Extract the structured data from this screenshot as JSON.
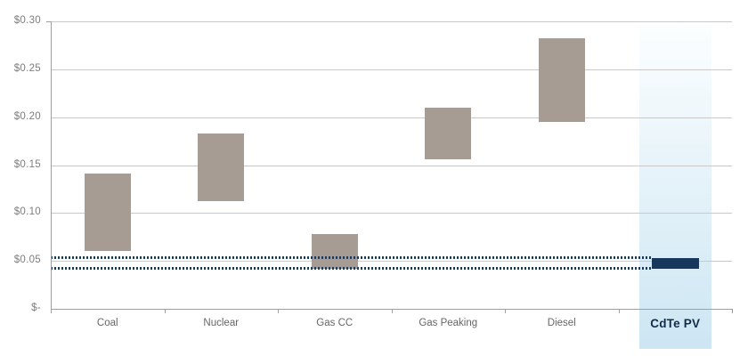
{
  "chart_data": {
    "type": "bar",
    "subtype": "floating-range-columns",
    "title": "",
    "legend": "none",
    "grid": "horizontal",
    "categories": [
      "Coal",
      "Nuclear",
      "Gas CC",
      "Gas Peaking",
      "Diesel",
      "CdTe PV"
    ],
    "bars": [
      {
        "category": "Coal",
        "low": 0.06,
        "high": 0.141
      },
      {
        "category": "Nuclear",
        "low": 0.112,
        "high": 0.183
      },
      {
        "category": "Gas CC",
        "low": 0.042,
        "high": 0.078
      },
      {
        "category": "Gas Peaking",
        "low": 0.156,
        "high": 0.21
      },
      {
        "category": "Diesel",
        "low": 0.195,
        "high": 0.282
      },
      {
        "category": "CdTe PV",
        "low": 0.042,
        "high": 0.053
      }
    ],
    "highlight": {
      "category": "CdTe PV",
      "band": true,
      "reference_lines": [
        {
          "value": 0.053,
          "style": "dotted"
        },
        {
          "value": 0.042,
          "style": "dotted"
        }
      ]
    },
    "y_axis": {
      "min": 0,
      "max": 0.3,
      "tick_interval": 0.05,
      "ticks": [
        {
          "label": "$0.30",
          "value": 0.3
        },
        {
          "label": "$0.25",
          "value": 0.25
        },
        {
          "label": "$0.20",
          "value": 0.2
        },
        {
          "label": "$0.15",
          "value": 0.15
        },
        {
          "label": "$0.10",
          "value": 0.1
        },
        {
          "label": "$0.05",
          "value": 0.05
        },
        {
          "label": "$-",
          "value": 0.0
        }
      ]
    },
    "x_axis": {
      "labels": [
        "Coal",
        "Nuclear",
        "Gas CC",
        "Gas Peaking",
        "Diesel",
        "CdTe PV"
      ]
    },
    "colors": {
      "bar": "#a69c93",
      "pv_bar": "#17375d",
      "band_top": "#fcfeff",
      "band_bottom": "#cde6f3",
      "gridline": "#c9c9c9",
      "axis": "#9f9f9f",
      "tick_label": "#7d7d7d",
      "category_label": "#666666",
      "pv_label": "#122b47",
      "reference_line": "#1b3a60"
    }
  }
}
